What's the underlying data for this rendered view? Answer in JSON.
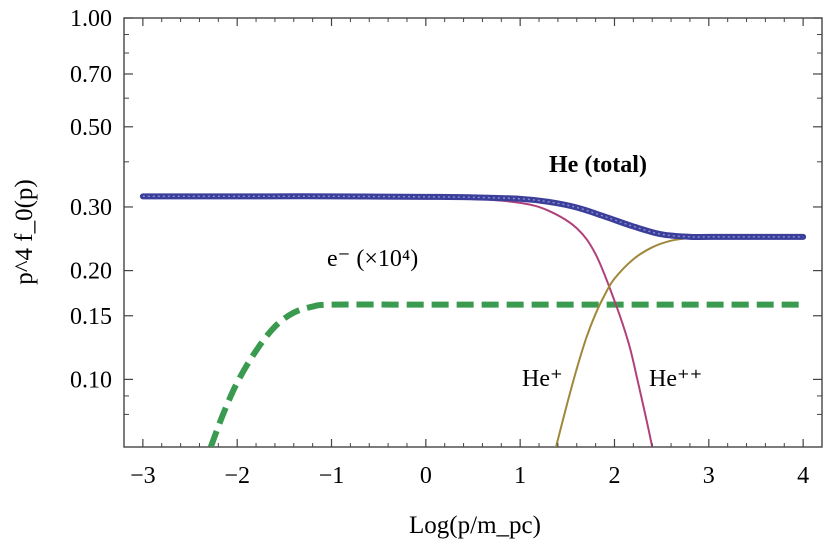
{
  "chart_data": {
    "type": "line",
    "title": "",
    "xlabel": "Log(p/m_pc)",
    "ylabel": "p^4 f_0(p)",
    "xlim": [
      -3.2,
      4.2
    ],
    "ylim": [
      0.065,
      1.0
    ],
    "yscale": "log",
    "grid": false,
    "x_ticks": [
      -3,
      -2,
      -1,
      0,
      1,
      2,
      3,
      4
    ],
    "x_tick_labels": [
      "−3",
      "−2",
      "−1",
      "0",
      "1",
      "2",
      "3",
      "4"
    ],
    "y_ticks": [
      0.1,
      0.15,
      0.2,
      0.3,
      0.5,
      0.7,
      1.0
    ],
    "y_tick_labels": [
      "0.10",
      "0.15",
      "0.20",
      "0.30",
      "0.50",
      "0.70",
      "1.00"
    ],
    "series": [
      {
        "name": "He (total)",
        "color": "#3b3f9a",
        "style": "thick-solid",
        "points": [
          [
            -3.0,
            0.321
          ],
          [
            -2.0,
            0.321
          ],
          [
            -1.0,
            0.321
          ],
          [
            0.0,
            0.32
          ],
          [
            0.5,
            0.319
          ],
          [
            1.0,
            0.316
          ],
          [
            1.3,
            0.31
          ],
          [
            1.6,
            0.299
          ],
          [
            1.9,
            0.282
          ],
          [
            2.2,
            0.265
          ],
          [
            2.5,
            0.252
          ],
          [
            2.8,
            0.248
          ],
          [
            3.0,
            0.248
          ],
          [
            3.5,
            0.248
          ],
          [
            4.0,
            0.248
          ]
        ]
      },
      {
        "name": "He⁺",
        "color": "#b0407a",
        "style": "thin-solid",
        "points": [
          [
            -3.0,
            0.319
          ],
          [
            -1.0,
            0.319
          ],
          [
            0.0,
            0.318
          ],
          [
            0.5,
            0.316
          ],
          [
            1.0,
            0.308
          ],
          [
            1.3,
            0.293
          ],
          [
            1.6,
            0.262
          ],
          [
            1.8,
            0.222
          ],
          [
            2.0,
            0.165
          ],
          [
            2.15,
            0.126
          ],
          [
            2.25,
            0.098
          ],
          [
            2.35,
            0.075
          ],
          [
            2.4,
            0.065
          ]
        ]
      },
      {
        "name": "He⁺⁺",
        "color": "#a0883a",
        "style": "thin-solid",
        "points": [
          [
            1.38,
            0.065
          ],
          [
            1.5,
            0.086
          ],
          [
            1.6,
            0.107
          ],
          [
            1.7,
            0.13
          ],
          [
            1.8,
            0.152
          ],
          [
            1.9,
            0.172
          ],
          [
            2.0,
            0.19
          ],
          [
            2.2,
            0.215
          ],
          [
            2.4,
            0.232
          ],
          [
            2.6,
            0.242
          ],
          [
            2.8,
            0.246
          ],
          [
            3.0,
            0.247
          ],
          [
            4.0,
            0.247
          ]
        ]
      },
      {
        "name": "e⁻ (×10⁴)",
        "color": "#3a9a50",
        "style": "thick-dashed",
        "points": [
          [
            -2.28,
            0.065
          ],
          [
            -2.15,
            0.08
          ],
          [
            -2.0,
            0.098
          ],
          [
            -1.8,
            0.12
          ],
          [
            -1.6,
            0.14
          ],
          [
            -1.4,
            0.153
          ],
          [
            -1.2,
            0.159
          ],
          [
            -1.0,
            0.161
          ],
          [
            0.0,
            0.161
          ],
          [
            1.0,
            0.161
          ],
          [
            2.0,
            0.161
          ],
          [
            3.0,
            0.161
          ],
          [
            4.0,
            0.161
          ]
        ]
      }
    ],
    "annotations": [
      {
        "text": "He (total)",
        "x": 2.0,
        "y": 0.34
      },
      {
        "text": "He⁺",
        "x": 1.25,
        "y": 0.083
      },
      {
        "text": "He⁺⁺",
        "x": 2.7,
        "y": 0.083
      },
      {
        "text": "e⁻ (×10⁴)",
        "x": -0.6,
        "y": 0.175
      }
    ]
  }
}
